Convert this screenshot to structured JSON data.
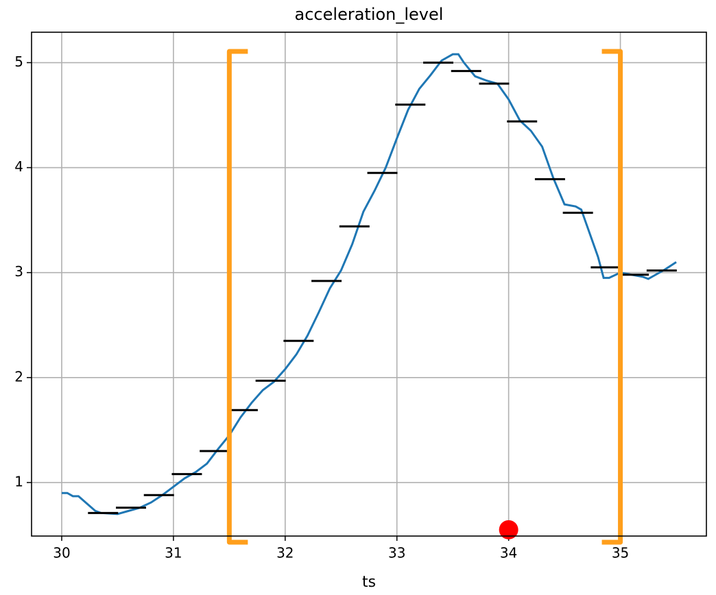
{
  "chart_data": {
    "type": "line",
    "title": "acceleration_level",
    "x_label": "ts",
    "xlim": [
      29.73,
      35.77
    ],
    "ylim": [
      0.49,
      5.29
    ],
    "xticks": [
      30,
      31,
      32,
      33,
      34,
      35
    ],
    "yticks": [
      1,
      2,
      3,
      4,
      5
    ],
    "grid": true,
    "series": [
      {
        "style": "line",
        "color": "#1f77b4",
        "x": [
          30.0,
          30.05,
          30.1,
          30.15,
          30.3,
          30.35,
          30.5,
          30.6,
          30.7,
          30.8,
          30.9,
          31.0,
          31.1,
          31.2,
          31.3,
          31.4,
          31.5,
          31.6,
          31.7,
          31.8,
          31.9,
          32.0,
          32.1,
          32.2,
          32.3,
          32.4,
          32.5,
          32.6,
          32.7,
          32.8,
          32.9,
          33.0,
          33.1,
          33.2,
          33.3,
          33.4,
          33.5,
          33.55,
          33.6,
          33.7,
          33.8,
          33.9,
          34.0,
          34.1,
          34.2,
          34.3,
          34.4,
          34.5,
          34.6,
          34.65,
          34.7,
          34.8,
          34.85,
          34.9,
          35.0,
          35.1,
          35.2,
          35.25,
          35.3,
          35.4,
          35.5
        ],
        "values": [
          0.9,
          0.9,
          0.87,
          0.87,
          0.73,
          0.71,
          0.7,
          0.73,
          0.76,
          0.81,
          0.88,
          0.96,
          1.04,
          1.1,
          1.18,
          1.32,
          1.45,
          1.62,
          1.76,
          1.88,
          1.96,
          2.08,
          2.22,
          2.4,
          2.62,
          2.85,
          3.02,
          3.27,
          3.58,
          3.78,
          4.0,
          4.28,
          4.55,
          4.75,
          4.88,
          5.02,
          5.08,
          5.08,
          5.0,
          4.87,
          4.83,
          4.8,
          4.65,
          4.45,
          4.35,
          4.2,
          3.9,
          3.65,
          3.63,
          3.6,
          3.45,
          3.15,
          2.95,
          2.95,
          3.0,
          2.98,
          2.96,
          2.94,
          2.97,
          3.03,
          3.1
        ]
      },
      {
        "style": "hline",
        "color": "#000000",
        "x": [
          30.37,
          30.62,
          30.87,
          31.12,
          31.37,
          31.62,
          31.87,
          32.12,
          32.37,
          32.62,
          32.87,
          33.12,
          33.37,
          33.62,
          33.87,
          34.12,
          34.37,
          34.62,
          34.87,
          35.12,
          35.37
        ],
        "values": [
          0.71,
          0.76,
          0.88,
          1.08,
          1.3,
          1.69,
          1.97,
          2.35,
          2.92,
          3.44,
          3.95,
          4.6,
          5.0,
          4.92,
          4.8,
          4.44,
          3.89,
          3.57,
          3.05,
          2.98,
          3.02
        ]
      }
    ],
    "brackets": {
      "x": [
        31.5,
        35
      ],
      "color": "#ff9f1c"
    },
    "point": {
      "x": 34,
      "y": 0.55,
      "color": "#ff0000"
    }
  }
}
